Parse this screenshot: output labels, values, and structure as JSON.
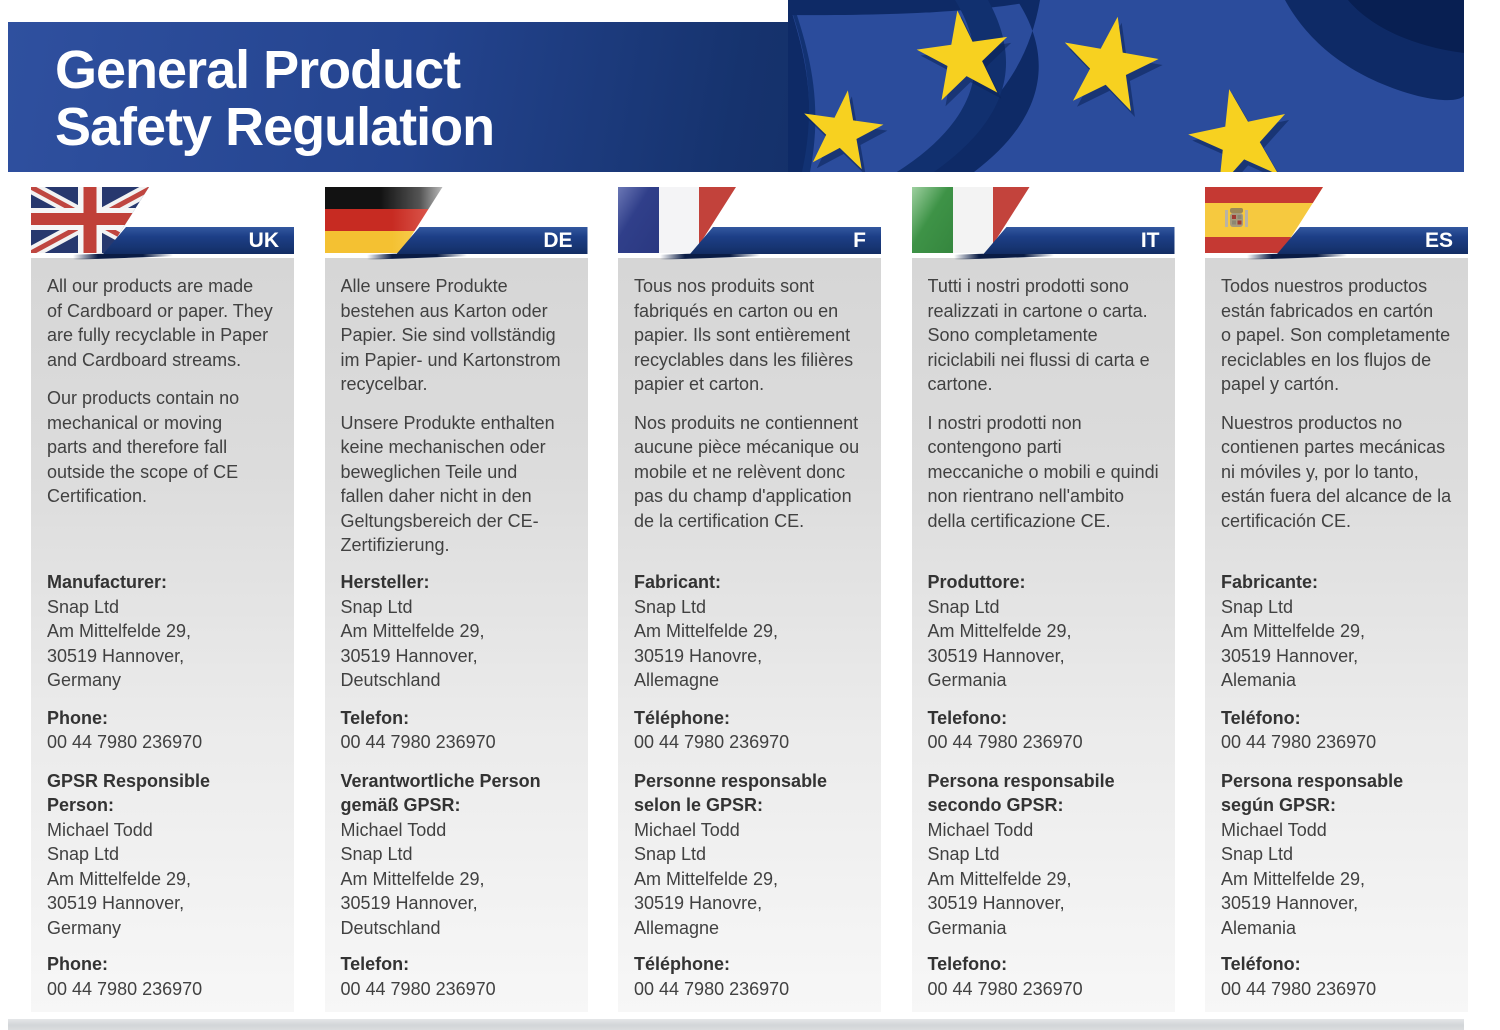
{
  "header": {
    "title": "General Product\nSafety Regulation"
  },
  "colors": {
    "banner_blue": "#1d3f87",
    "navy": "#0e2a66",
    "royal_blue": "#2b4c9c",
    "star_yellow": "#f7d120",
    "panel_gray": "#d6d6d6",
    "text_gray": "#414141"
  },
  "columns": [
    {
      "code": "UK",
      "flag": "uk",
      "para1": [
        "All our products are made",
        "of Cardboard or paper. They",
        "are fully recyclable in Paper",
        "and Cardboard streams."
      ],
      "para2": [
        "Our products contain no",
        "mechanical or moving",
        "parts and therefore fall",
        "outside the scope of CE",
        "Certification."
      ],
      "manufacturer_label": "Manufacturer:",
      "manufacturer_lines": [
        "Snap Ltd",
        "Am Mittelfelde 29,",
        "30519 Hannover,",
        "Germany"
      ],
      "phone_label": "Phone:",
      "phone_number": "00 44 7980 236970",
      "gpsr_label": "GPSR Responsible\nPerson:",
      "gpsr_lines": [
        "Michael Todd",
        "Snap Ltd",
        "Am Mittelfelde 29,",
        "30519 Hannover,",
        "Germany"
      ]
    },
    {
      "code": "DE",
      "flag": "de",
      "para1": [
        "Alle unsere Produkte",
        "bestehen aus Karton oder",
        "Papier. Sie sind vollständig",
        "im Papier- und Kartonstrom",
        "recycelbar."
      ],
      "para2": [
        "Unsere Produkte enthalten",
        "keine mechanischen oder",
        "beweglichen Teile und",
        "fallen daher nicht in den",
        "Geltungsbereich der CE-",
        "Zertifizierung."
      ],
      "manufacturer_label": "Hersteller:",
      "manufacturer_lines": [
        "Snap Ltd",
        "Am Mittelfelde 29,",
        "30519 Hannover,",
        "Deutschland"
      ],
      "phone_label": "Telefon:",
      "phone_number": "00 44 7980 236970",
      "gpsr_label": "Verantwortliche Person\ngemäß GPSR:",
      "gpsr_lines": [
        "Michael Todd",
        "Snap Ltd",
        "Am Mittelfelde 29,",
        "30519 Hannover,",
        "Deutschland"
      ]
    },
    {
      "code": "F",
      "flag": "fr",
      "para1": [
        "Tous nos produits sont",
        "fabriqués en carton ou en",
        "papier. Ils sont entièrement",
        "recyclables dans les filières",
        "papier et carton."
      ],
      "para2": [
        "Nos produits ne contiennent",
        "aucune pièce mécanique ou",
        "mobile et ne relèvent donc",
        "pas du champ d'application",
        "de la certification CE."
      ],
      "manufacturer_label": "Fabricant:",
      "manufacturer_lines": [
        "Snap Ltd",
        "Am Mittelfelde 29,",
        "30519 Hanovre,",
        "Allemagne"
      ],
      "phone_label": "Téléphone:",
      "phone_number": "00 44 7980 236970",
      "gpsr_label": "Personne responsable\nselon le GPSR:",
      "gpsr_lines": [
        "Michael Todd",
        "Snap Ltd",
        "Am Mittelfelde 29,",
        "30519 Hanovre,",
        "Allemagne"
      ]
    },
    {
      "code": "IT",
      "flag": "it",
      "para1": [
        "Tutti i nostri prodotti sono",
        "realizzati in cartone o carta.",
        "Sono completamente",
        "riciclabili nei flussi di carta e",
        "cartone."
      ],
      "para2": [
        "I nostri prodotti non",
        "contengono parti",
        "meccaniche o mobili e quindi",
        "non rientrano nell'ambito",
        "della certificazione CE."
      ],
      "manufacturer_label": "Produttore:",
      "manufacturer_lines": [
        "Snap Ltd",
        "Am Mittelfelde 29,",
        "30519 Hannover,",
        "Germania"
      ],
      "phone_label": "Telefono:",
      "phone_number": "00 44 7980 236970",
      "gpsr_label": "Persona responsabile\nsecondo GPSR:",
      "gpsr_lines": [
        "Michael Todd",
        "Snap Ltd",
        "Am Mittelfelde 29,",
        "30519 Hannover,",
        "Germania"
      ]
    },
    {
      "code": "ES",
      "flag": "es",
      "para1": [
        "Todos nuestros productos",
        "están fabricados en cartón",
        "o papel. Son completamente",
        "reciclables en los flujos de",
        "papel y cartón."
      ],
      "para2": [
        "Nuestros productos no",
        "contienen partes mecánicas",
        "ni móviles y, por lo tanto,",
        "están fuera del alcance de la",
        "certificación CE."
      ],
      "manufacturer_label": "Fabricante:",
      "manufacturer_lines": [
        "Snap Ltd",
        "Am Mittelfelde 29,",
        "30519 Hannover,",
        "Alemania"
      ],
      "phone_label": "Teléfono:",
      "phone_number": "00 44 7980 236970",
      "gpsr_label": "Persona responsable\nsegún GPSR:",
      "gpsr_lines": [
        "Michael Todd",
        "Snap Ltd",
        "Am Mittelfelde 29,",
        "30519 Hannover,",
        "Alemania"
      ]
    }
  ]
}
